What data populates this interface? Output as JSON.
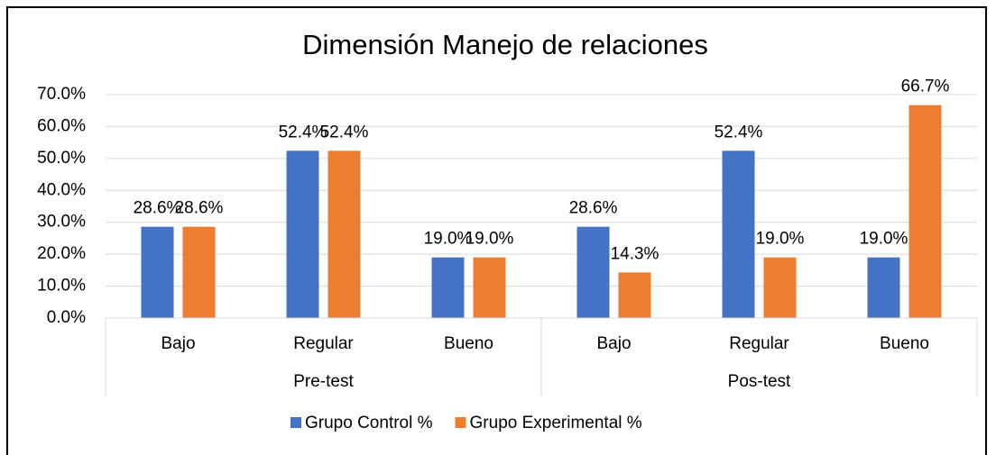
{
  "chart_data": {
    "type": "bar",
    "title": "Dimensión Manejo de relaciones",
    "category_groups": [
      {
        "name": "Pre-test",
        "categories": [
          "Bajo",
          "Regular",
          "Bueno"
        ]
      },
      {
        "name": "Pos-test",
        "categories": [
          "Bajo",
          "Regular",
          "Bueno"
        ]
      }
    ],
    "series": [
      {
        "name": "Grupo Control %",
        "color": "#4472c4",
        "values": [
          28.6,
          52.4,
          19.0,
          28.6,
          52.4,
          19.0
        ],
        "value_labels": [
          "28.6%",
          "52.4%",
          "19.0%",
          "28.6%",
          "52.4%",
          "19.0%"
        ]
      },
      {
        "name": "Grupo Experimental %",
        "color": "#ed7d31",
        "values": [
          28.6,
          52.4,
          19.0,
          14.3,
          19.0,
          66.7
        ],
        "value_labels": [
          "28.6%",
          "52.4%",
          "19.0%",
          "14.3%",
          "19.0%",
          "66.7%"
        ]
      }
    ],
    "ylim": [
      0,
      70
    ],
    "yticks": [
      {
        "value": 0,
        "label": "0.0%"
      },
      {
        "value": 10,
        "label": "10.0%"
      },
      {
        "value": 20,
        "label": "20.0%"
      },
      {
        "value": 30,
        "label": "30.0%"
      },
      {
        "value": 40,
        "label": "40.0%"
      },
      {
        "value": 50,
        "label": "50.0%"
      },
      {
        "value": 60,
        "label": "60.0%"
      },
      {
        "value": 70,
        "label": "70.0%"
      }
    ],
    "grid": true,
    "legend": "bottom"
  }
}
